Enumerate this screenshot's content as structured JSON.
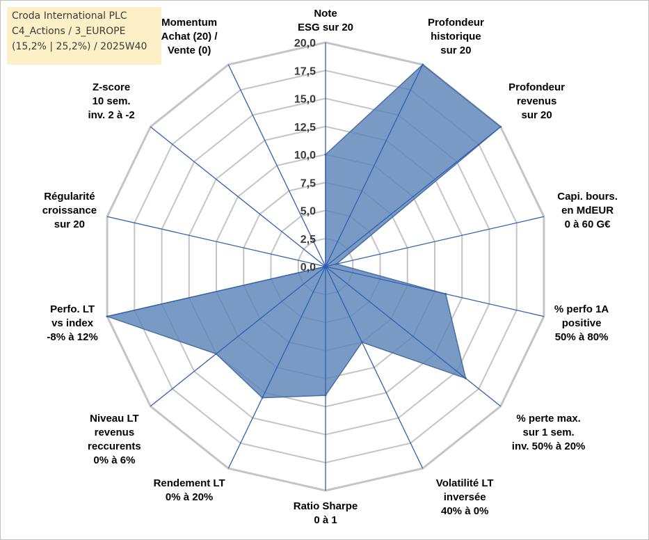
{
  "header": {
    "line1": "Croda International PLC",
    "line2": "C4_Actions / 3_EUROPE",
    "line3": "(15,2% | 25,2%) / 2025W40"
  },
  "colors": {
    "fill": "#5b84b8",
    "fill_stroke": "#4a6fa5",
    "spoke": "#2f5fb0",
    "grid": "#c4c4c4",
    "text": "#000000"
  },
  "chart_data": {
    "type": "radar",
    "title": "",
    "rmin": 0,
    "rmax": 20,
    "tick_labels": [
      "0,0",
      "2,5",
      "5,0",
      "7,5",
      "10,0",
      "12,5",
      "15,0",
      "17,5",
      "20,0"
    ],
    "axes": [
      {
        "label": [
          "Note",
          "ESG sur 20"
        ],
        "value": 10.0
      },
      {
        "label": [
          "Profondeur",
          "historique",
          "sur 20"
        ],
        "value": 20.0
      },
      {
        "label": [
          "Profondeur",
          "revenus",
          "sur 20"
        ],
        "value": 20.0
      },
      {
        "label": [
          "Capi. bours.",
          "en MdEUR",
          "0 à 60 G€"
        ],
        "value": 1.0
      },
      {
        "label": [
          "% perfo 1A",
          "positive",
          "50% à 80%"
        ],
        "value": 11.0
      },
      {
        "label": [
          "% perte max.",
          "sur 1 sem.",
          "inv. 50% à 20%"
        ],
        "value": 16.0
      },
      {
        "label": [
          "Volatilité LT",
          "inversée",
          "40% à 0%"
        ],
        "value": 7.5
      },
      {
        "label": [
          "Ratio Sharpe",
          "0 à 1"
        ],
        "value": 11.5
      },
      {
        "label": [
          "Rendement LT",
          "0% à 20%"
        ],
        "value": 13.0
      },
      {
        "label": [
          "Niveau LT",
          "revenus",
          "reccurents",
          "0% à 6%"
        ],
        "value": 12.5
      },
      {
        "label": [
          "Perfo. LT",
          "vs index",
          "-8% à 12%"
        ],
        "value": 20.0
      },
      {
        "label": [
          "Régularité",
          "croissance",
          "sur 20"
        ],
        "value": 0.0
      },
      {
        "label": [
          "Z-score",
          "10 sem.",
          "inv. 2 à -2"
        ],
        "value": 0.0
      },
      {
        "label": [
          "Momentum",
          "Achat (20) /",
          "Vente (0)"
        ],
        "value": 0.0
      }
    ]
  }
}
